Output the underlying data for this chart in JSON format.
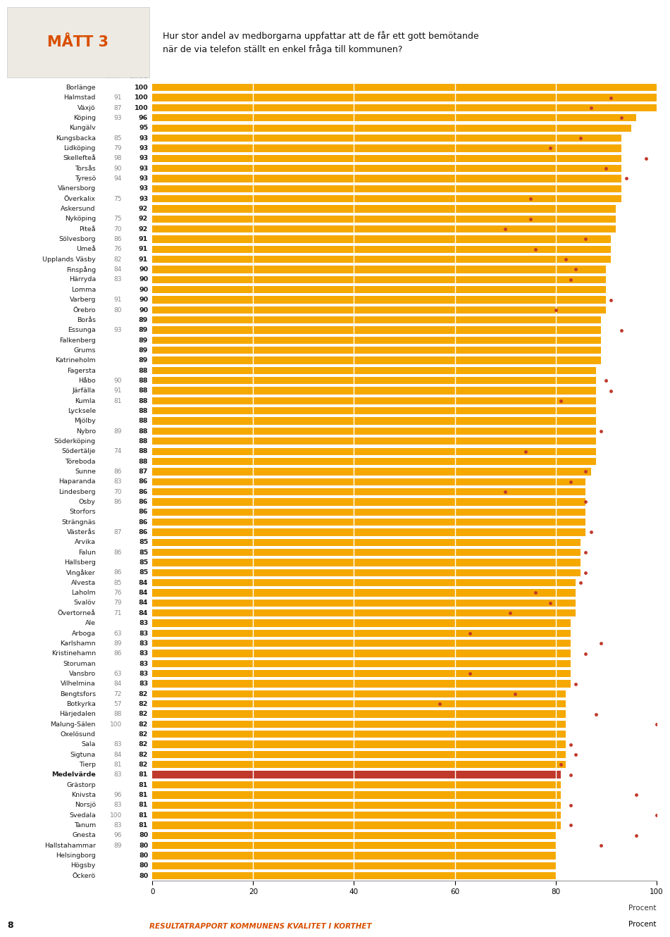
{
  "title_label": "MÅТТ 3",
  "question": "Hur stor andel av medborgarna uppfattar att de får ett gott bemötande\nnär de via telefon ställt en enkel fråga till kommunen?",
  "col_2010": "2010",
  "col_2011": "2011",
  "xlabel": "Procent",
  "footer": "RESULTATRAPPORT KOMMUNENS KVALITET I KORTHET",
  "footer_page": "8",
  "bar_color": "#F5A800",
  "median_color": "#C0392B",
  "dot_color": "#C0392B",
  "background_color": "#FFFFFF",
  "header_box_color": "#EDE9E3",
  "header_text_color": "#D94F00",
  "municipalities": [
    {
      "name": "Borlänge",
      "v2010": null,
      "v2011": 100
    },
    {
      "name": "Halmstad",
      "v2010": 91,
      "v2011": 100
    },
    {
      "name": "Växjö",
      "v2010": 87,
      "v2011": 100
    },
    {
      "name": "Köping",
      "v2010": 93,
      "v2011": 96
    },
    {
      "name": "Kungälv",
      "v2010": null,
      "v2011": 95
    },
    {
      "name": "Kungsbacka",
      "v2010": 85,
      "v2011": 93
    },
    {
      "name": "Lidköping",
      "v2010": 79,
      "v2011": 93
    },
    {
      "name": "Skellefteå",
      "v2010": 98,
      "v2011": 93
    },
    {
      "name": "Torsås",
      "v2010": 90,
      "v2011": 93
    },
    {
      "name": "Tyresö",
      "v2010": 94,
      "v2011": 93
    },
    {
      "name": "Vänersborg",
      "v2010": null,
      "v2011": 93
    },
    {
      "name": "Överkalix",
      "v2010": 75,
      "v2011": 93
    },
    {
      "name": "Askersund",
      "v2010": null,
      "v2011": 92
    },
    {
      "name": "Nyköping",
      "v2010": 75,
      "v2011": 92
    },
    {
      "name": "Piteå",
      "v2010": 70,
      "v2011": 92
    },
    {
      "name": "Sölvesborg",
      "v2010": 86,
      "v2011": 91
    },
    {
      "name": "Umeå",
      "v2010": 76,
      "v2011": 91
    },
    {
      "name": "Upplands Väsby",
      "v2010": 82,
      "v2011": 91
    },
    {
      "name": "Finspång",
      "v2010": 84,
      "v2011": 90
    },
    {
      "name": "Härryda",
      "v2010": 83,
      "v2011": 90
    },
    {
      "name": "Lomma",
      "v2010": null,
      "v2011": 90
    },
    {
      "name": "Varberg",
      "v2010": 91,
      "v2011": 90
    },
    {
      "name": "Örebro",
      "v2010": 80,
      "v2011": 90
    },
    {
      "name": "Borås",
      "v2010": null,
      "v2011": 89
    },
    {
      "name": "Essunga",
      "v2010": 93,
      "v2011": 89
    },
    {
      "name": "Falkenberg",
      "v2010": null,
      "v2011": 89
    },
    {
      "name": "Grums",
      "v2010": null,
      "v2011": 89
    },
    {
      "name": "Katrineholm",
      "v2010": null,
      "v2011": 89
    },
    {
      "name": "Fagersta",
      "v2010": null,
      "v2011": 88
    },
    {
      "name": "Håbo",
      "v2010": 90,
      "v2011": 88
    },
    {
      "name": "Järfälla",
      "v2010": 91,
      "v2011": 88
    },
    {
      "name": "Kumla",
      "v2010": 81,
      "v2011": 88
    },
    {
      "name": "Lycksele",
      "v2010": null,
      "v2011": 88
    },
    {
      "name": "Mjölby",
      "v2010": null,
      "v2011": 88
    },
    {
      "name": "Nybro",
      "v2010": 89,
      "v2011": 88
    },
    {
      "name": "Söderköping",
      "v2010": null,
      "v2011": 88
    },
    {
      "name": "Södertälje",
      "v2010": 74,
      "v2011": 88
    },
    {
      "name": "Töreboda",
      "v2010": null,
      "v2011": 88
    },
    {
      "name": "Sunne",
      "v2010": 86,
      "v2011": 87
    },
    {
      "name": "Haparanda",
      "v2010": 83,
      "v2011": 86
    },
    {
      "name": "Lindesberg",
      "v2010": 70,
      "v2011": 86
    },
    {
      "name": "Osby",
      "v2010": 86,
      "v2011": 86
    },
    {
      "name": "Storfors",
      "v2010": null,
      "v2011": 86
    },
    {
      "name": "Strängnäs",
      "v2010": null,
      "v2011": 86
    },
    {
      "name": "Västerås",
      "v2010": 87,
      "v2011": 86
    },
    {
      "name": "Arvika",
      "v2010": null,
      "v2011": 85
    },
    {
      "name": "Falun",
      "v2010": 86,
      "v2011": 85
    },
    {
      "name": "Hallsberg",
      "v2010": null,
      "v2011": 85
    },
    {
      "name": "Vingåker",
      "v2010": 86,
      "v2011": 85
    },
    {
      "name": "Alvesta",
      "v2010": 85,
      "v2011": 84
    },
    {
      "name": "Laholm",
      "v2010": 76,
      "v2011": 84
    },
    {
      "name": "Svalöv",
      "v2010": 79,
      "v2011": 84
    },
    {
      "name": "Övertorneå",
      "v2010": 71,
      "v2011": 84
    },
    {
      "name": "Ale",
      "v2010": null,
      "v2011": 83
    },
    {
      "name": "Arboga",
      "v2010": 63,
      "v2011": 83
    },
    {
      "name": "Karlshamn",
      "v2010": 89,
      "v2011": 83
    },
    {
      "name": "Kristinehamn",
      "v2010": 86,
      "v2011": 83
    },
    {
      "name": "Storuman",
      "v2010": null,
      "v2011": 83
    },
    {
      "name": "Vansbro",
      "v2010": 63,
      "v2011": 83
    },
    {
      "name": "Vilhelmina",
      "v2010": 84,
      "v2011": 83
    },
    {
      "name": "Bengtsfors",
      "v2010": 72,
      "v2011": 82
    },
    {
      "name": "Botkyrka",
      "v2010": 57,
      "v2011": 82
    },
    {
      "name": "Härjedalen",
      "v2010": 88,
      "v2011": 82
    },
    {
      "name": "Malung-Sälen",
      "v2010": 100,
      "v2011": 82
    },
    {
      "name": "Oxelösund",
      "v2010": null,
      "v2011": 82
    },
    {
      "name": "Sala",
      "v2010": 83,
      "v2011": 82
    },
    {
      "name": "Sigtuna",
      "v2010": 84,
      "v2011": 82
    },
    {
      "name": "Tierp",
      "v2010": 81,
      "v2011": 82
    },
    {
      "name": "Medelvärde",
      "v2010": 83,
      "v2011": 81,
      "is_median": true
    },
    {
      "name": "Grästorp",
      "v2010": null,
      "v2011": 81
    },
    {
      "name": "Knivsta",
      "v2010": 96,
      "v2011": 81
    },
    {
      "name": "Norsjö",
      "v2010": 83,
      "v2011": 81
    },
    {
      "name": "Svedala",
      "v2010": 100,
      "v2011": 81
    },
    {
      "name": "Tanum",
      "v2010": 83,
      "v2011": 81
    },
    {
      "name": "Gnesta",
      "v2010": 96,
      "v2011": 80
    },
    {
      "name": "Hallstahammar",
      "v2010": 89,
      "v2011": 80
    },
    {
      "name": "Helsingborg",
      "v2010": null,
      "v2011": 80
    },
    {
      "name": "Högsby",
      "v2010": null,
      "v2011": 80
    },
    {
      "name": "Öckerö",
      "v2010": null,
      "v2011": 80
    }
  ]
}
